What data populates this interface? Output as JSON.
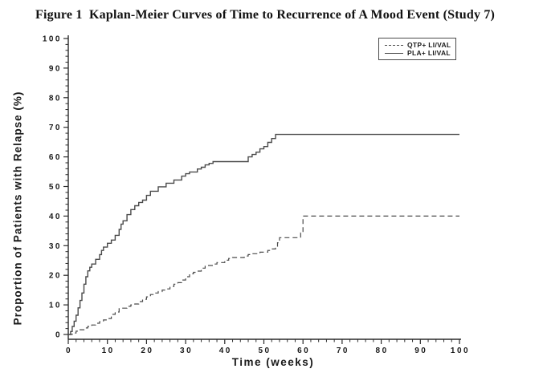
{
  "figure": {
    "title": "Figure 1  Kaplan-Meier Curves of Time to Recurrence of A Mood Event (Study 7)"
  },
  "colors": {
    "axis": "#2b2b2b",
    "curve": "#4a4a4a",
    "text": "#1a1a1a"
  },
  "chart_data": {
    "type": "line",
    "subtype": "kaplan-meier-step",
    "title": "Figure 1  Kaplan-Meier Curves of Time to Recurrence of A Mood Event (Study 7)",
    "xlabel": "Time (weeks)",
    "ylabel": "Proportion of Patients with Relapse (%)",
    "xlim": [
      0,
      100
    ],
    "ylim": [
      0,
      100
    ],
    "x_ticks": [
      0,
      10,
      20,
      30,
      40,
      50,
      60,
      70,
      80,
      90,
      100
    ],
    "y_ticks": [
      0,
      10,
      20,
      30,
      40,
      50,
      60,
      70,
      80,
      90,
      100
    ],
    "minor_tick_interval": 2,
    "grid": false,
    "legend_position": "top-right",
    "series": [
      {
        "name": "QTP+ LI/VAL",
        "style": "dashed",
        "final_value": 40,
        "points": [
          [
            0,
            0
          ],
          [
            1,
            0.5
          ],
          [
            2,
            1.1
          ],
          [
            3,
            1.6
          ],
          [
            4,
            2.2
          ],
          [
            5,
            2.7
          ],
          [
            6,
            3.2
          ],
          [
            7,
            3.8
          ],
          [
            8,
            4.3
          ],
          [
            9,
            4.9
          ],
          [
            10,
            5.4
          ],
          [
            11,
            6.8
          ],
          [
            12,
            7.6
          ],
          [
            13,
            8.9
          ],
          [
            15,
            9.5
          ],
          [
            16,
            10
          ],
          [
            17,
            10.3
          ],
          [
            18,
            11.1
          ],
          [
            19,
            11.9
          ],
          [
            20,
            12.7
          ],
          [
            21,
            13.5
          ],
          [
            22,
            14
          ],
          [
            23,
            14.5
          ],
          [
            24,
            15
          ],
          [
            25,
            15.4
          ],
          [
            26,
            16.2
          ],
          [
            27,
            17
          ],
          [
            28,
            17.5
          ],
          [
            29,
            18.4
          ],
          [
            30,
            19.5
          ],
          [
            31,
            20.5
          ],
          [
            32,
            21
          ],
          [
            33,
            21.4
          ],
          [
            34,
            22.4
          ],
          [
            35,
            23.3
          ],
          [
            37,
            23.8
          ],
          [
            38,
            24.3
          ],
          [
            40,
            25.1
          ],
          [
            41,
            25.7
          ],
          [
            42,
            26
          ],
          [
            45,
            26.5
          ],
          [
            46,
            27
          ],
          [
            47,
            27.3
          ],
          [
            49,
            27.8
          ],
          [
            51,
            28.4
          ],
          [
            52,
            28.9
          ],
          [
            53,
            29.2
          ],
          [
            53.5,
            31
          ],
          [
            54,
            32.7
          ],
          [
            59,
            32.7
          ],
          [
            59.4,
            34.3
          ],
          [
            60,
            40
          ],
          [
            100,
            40
          ]
        ]
      },
      {
        "name": "PLA+ LI/VAL",
        "style": "solid",
        "final_value": 67.6,
        "points": [
          [
            0,
            0
          ],
          [
            0.6,
            1
          ],
          [
            1,
            2.7
          ],
          [
            1.5,
            4.5
          ],
          [
            2,
            6.5
          ],
          [
            2.5,
            9
          ],
          [
            3,
            11.5
          ],
          [
            3.5,
            14
          ],
          [
            4,
            17
          ],
          [
            4.5,
            19.5
          ],
          [
            5,
            21.5
          ],
          [
            5.5,
            22.7
          ],
          [
            6,
            23.8
          ],
          [
            7,
            25.4
          ],
          [
            8,
            27
          ],
          [
            8.5,
            28.4
          ],
          [
            9,
            29.5
          ],
          [
            10,
            30.8
          ],
          [
            11,
            31.9
          ],
          [
            12,
            33.5
          ],
          [
            13,
            35.5
          ],
          [
            13.5,
            37.3
          ],
          [
            14,
            38.4
          ],
          [
            15,
            40.5
          ],
          [
            16,
            42.2
          ],
          [
            17,
            43.5
          ],
          [
            18,
            44.6
          ],
          [
            19,
            45.4
          ],
          [
            20,
            47
          ],
          [
            21,
            48.4
          ],
          [
            23,
            49.9
          ],
          [
            25,
            51.1
          ],
          [
            27,
            52.2
          ],
          [
            29,
            53.5
          ],
          [
            30,
            54.3
          ],
          [
            31,
            54.9
          ],
          [
            33,
            55.9
          ],
          [
            34,
            56.5
          ],
          [
            35,
            57.3
          ],
          [
            36,
            57.8
          ],
          [
            37,
            58.4
          ],
          [
            45.5,
            58.4
          ],
          [
            46,
            60
          ],
          [
            47,
            60.8
          ],
          [
            48,
            61.6
          ],
          [
            49,
            62.7
          ],
          [
            50,
            63.5
          ],
          [
            51,
            64.9
          ],
          [
            52,
            66.2
          ],
          [
            53,
            67.6
          ],
          [
            100,
            67.6
          ]
        ]
      }
    ]
  }
}
